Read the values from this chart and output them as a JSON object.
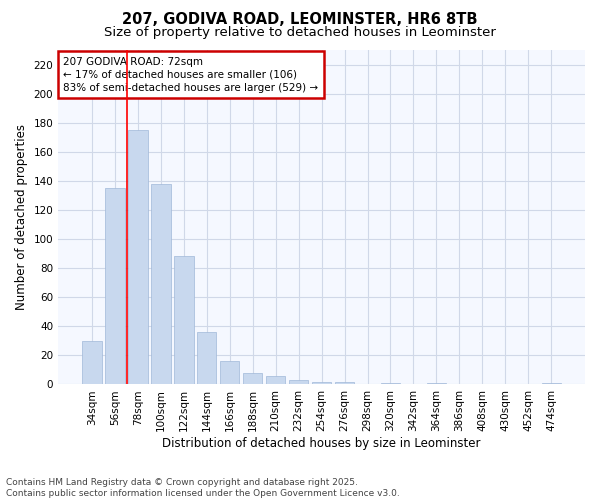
{
  "title_line1": "207, GODIVA ROAD, LEOMINSTER, HR6 8TB",
  "title_line2": "Size of property relative to detached houses in Leominster",
  "xlabel": "Distribution of detached houses by size in Leominster",
  "ylabel": "Number of detached properties",
  "bar_color": "#c8d8ee",
  "bar_edge_color": "#a0b8d8",
  "categories": [
    "34sqm",
    "56sqm",
    "78sqm",
    "100sqm",
    "122sqm",
    "144sqm",
    "166sqm",
    "188sqm",
    "210sqm",
    "232sqm",
    "254sqm",
    "276sqm",
    "298sqm",
    "320sqm",
    "342sqm",
    "364sqm",
    "386sqm",
    "408sqm",
    "430sqm",
    "452sqm",
    "474sqm"
  ],
  "values": [
    30,
    135,
    175,
    138,
    88,
    36,
    16,
    8,
    6,
    3,
    2,
    2,
    0,
    1,
    0,
    1,
    0,
    0,
    0,
    0,
    1
  ],
  "ylim": [
    0,
    230
  ],
  "yticks": [
    0,
    20,
    40,
    60,
    80,
    100,
    120,
    140,
    160,
    180,
    200,
    220
  ],
  "vline_x": 1.55,
  "annotation_text": "207 GODIVA ROAD: 72sqm\n← 17% of detached houses are smaller (106)\n83% of semi-detached houses are larger (529) →",
  "annotation_box_color": "#ffffff",
  "annotation_border_color": "#cc0000",
  "footer_line1": "Contains HM Land Registry data © Crown copyright and database right 2025.",
  "footer_line2": "Contains public sector information licensed under the Open Government Licence v3.0.",
  "background_color": "#ffffff",
  "plot_background_color": "#f5f8ff",
  "grid_color": "#d0d8e8",
  "title_fontsize": 10.5,
  "subtitle_fontsize": 9.5,
  "tick_fontsize": 7.5,
  "ylabel_fontsize": 8.5,
  "xlabel_fontsize": 8.5,
  "footer_fontsize": 6.5
}
